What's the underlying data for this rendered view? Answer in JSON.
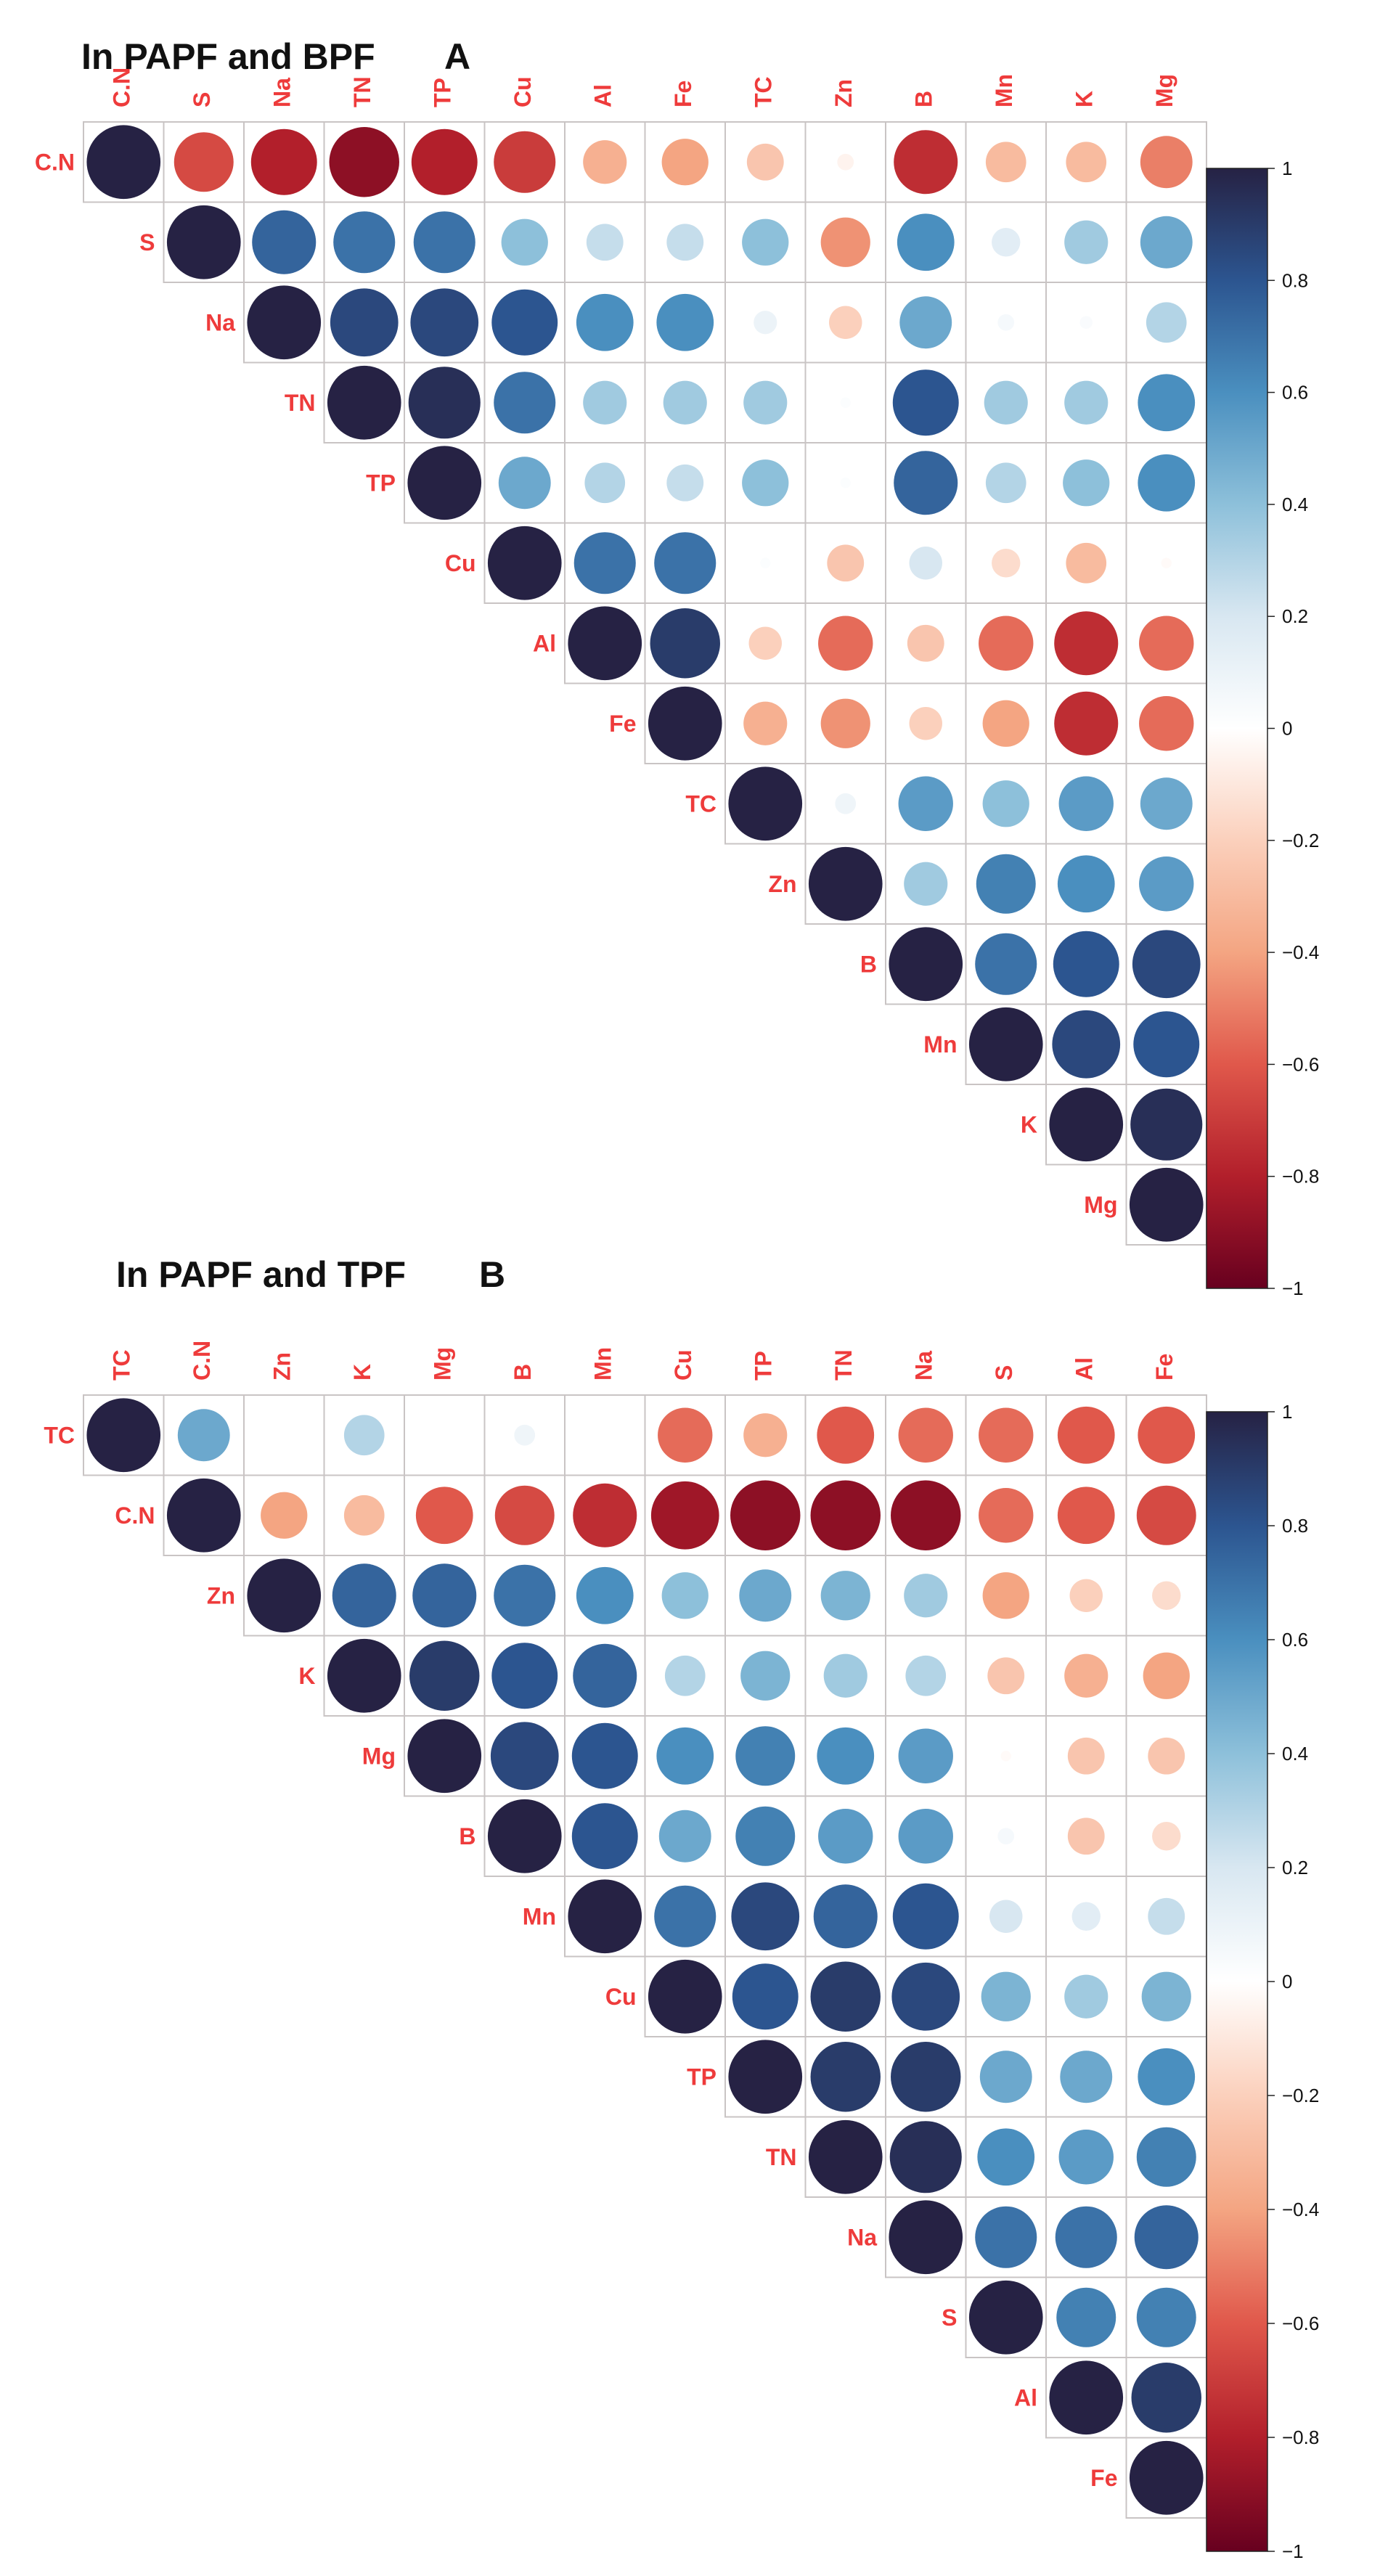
{
  "chart_data": [
    {
      "type": "heatmap",
      "title": "In PAPF and BPF",
      "panel_letter": "A",
      "variables": [
        "C.N",
        "S",
        "Na",
        "TN",
        "TP",
        "Cu",
        "Al",
        "Fe",
        "TC",
        "Zn",
        "B",
        "Mn",
        "K",
        "Mg"
      ],
      "values": [
        [
          1,
          -0.65,
          -0.8,
          -0.9,
          -0.8,
          -0.7,
          -0.35,
          -0.4,
          -0.25,
          -0.05,
          -0.75,
          -0.3,
          -0.3,
          -0.5
        ],
        [
          null,
          1,
          0.75,
          0.7,
          0.7,
          0.4,
          0.25,
          0.25,
          0.4,
          -0.45,
          0.6,
          0.15,
          0.35,
          0.5
        ],
        [
          null,
          null,
          1,
          0.85,
          0.85,
          0.8,
          0.6,
          0.6,
          0.1,
          -0.2,
          0.5,
          0.05,
          0.03,
          0.3
        ],
        [
          null,
          null,
          null,
          1,
          0.95,
          0.7,
          0.35,
          0.35,
          0.35,
          0.02,
          0.8,
          0.35,
          0.35,
          0.6
        ],
        [
          null,
          null,
          null,
          null,
          1,
          0.5,
          0.3,
          0.25,
          0.4,
          0.02,
          0.75,
          0.3,
          0.4,
          0.6
        ],
        [
          null,
          null,
          null,
          null,
          null,
          1,
          0.7,
          0.7,
          0.02,
          -0.25,
          0.2,
          -0.15,
          -0.3,
          -0.02
        ],
        [
          null,
          null,
          null,
          null,
          null,
          null,
          1,
          0.9,
          -0.2,
          -0.55,
          -0.25,
          -0.55,
          -0.75,
          -0.55
        ],
        [
          null,
          null,
          null,
          null,
          null,
          null,
          null,
          1,
          -0.35,
          -0.45,
          -0.2,
          -0.4,
          -0.75,
          -0.55
        ],
        [
          null,
          null,
          null,
          null,
          null,
          null,
          null,
          null,
          1,
          0.08,
          0.55,
          0.4,
          0.55,
          0.5
        ],
        [
          null,
          null,
          null,
          null,
          null,
          null,
          null,
          null,
          null,
          1,
          0.35,
          0.65,
          0.6,
          0.55
        ],
        [
          null,
          null,
          null,
          null,
          null,
          null,
          null,
          null,
          null,
          null,
          1,
          0.7,
          0.8,
          0.85
        ],
        [
          null,
          null,
          null,
          null,
          null,
          null,
          null,
          null,
          null,
          null,
          null,
          1,
          0.85,
          0.8
        ],
        [
          null,
          null,
          null,
          null,
          null,
          null,
          null,
          null,
          null,
          null,
          null,
          null,
          1,
          0.95
        ],
        [
          null,
          null,
          null,
          null,
          null,
          null,
          null,
          null,
          null,
          null,
          null,
          null,
          null,
          1
        ]
      ],
      "colorbar": {
        "min": -1,
        "max": 1,
        "ticks": [
          "1",
          "0.8",
          "0.6",
          "0.4",
          "0.2",
          "0",
          "−0.2",
          "−0.4",
          "−0.6",
          "−0.8",
          "−1"
        ]
      }
    },
    {
      "type": "heatmap",
      "title": "In PAPF and TPF",
      "panel_letter": "B",
      "variables": [
        "TC",
        "C.N",
        "Zn",
        "K",
        "Mg",
        "B",
        "Mn",
        "Cu",
        "TP",
        "TN",
        "Na",
        "S",
        "Al",
        "Fe"
      ],
      "values": [
        [
          1,
          0.5,
          0,
          0.3,
          0,
          0.08,
          0,
          -0.55,
          -0.35,
          -0.6,
          -0.55,
          -0.55,
          -0.6,
          -0.6
        ],
        [
          null,
          1,
          -0.4,
          -0.3,
          -0.6,
          -0.65,
          -0.75,
          -0.85,
          -0.9,
          -0.9,
          -0.9,
          -0.55,
          -0.6,
          -0.65
        ],
        [
          null,
          null,
          1,
          0.75,
          0.75,
          0.7,
          0.6,
          0.4,
          0.5,
          0.45,
          0.35,
          -0.4,
          -0.2,
          -0.15
        ],
        [
          null,
          null,
          null,
          1,
          0.9,
          0.8,
          0.75,
          0.3,
          0.45,
          0.35,
          0.3,
          -0.25,
          -0.35,
          -0.4
        ],
        [
          null,
          null,
          null,
          null,
          1,
          0.85,
          0.8,
          0.6,
          0.65,
          0.6,
          0.55,
          -0.02,
          -0.25,
          -0.25
        ],
        [
          null,
          null,
          null,
          null,
          null,
          1,
          0.8,
          0.5,
          0.65,
          0.55,
          0.55,
          0.05,
          -0.25,
          -0.15
        ],
        [
          null,
          null,
          null,
          null,
          null,
          null,
          1,
          0.7,
          0.85,
          0.75,
          0.8,
          0.2,
          0.15,
          0.25
        ],
        [
          null,
          null,
          null,
          null,
          null,
          null,
          null,
          1,
          0.8,
          0.9,
          0.85,
          0.45,
          0.35,
          0.45
        ],
        [
          null,
          null,
          null,
          null,
          null,
          null,
          null,
          null,
          1,
          0.9,
          0.9,
          0.5,
          0.5,
          0.6
        ],
        [
          null,
          null,
          null,
          null,
          null,
          null,
          null,
          null,
          null,
          1,
          0.95,
          0.6,
          0.55,
          0.65
        ],
        [
          null,
          null,
          null,
          null,
          null,
          null,
          null,
          null,
          null,
          null,
          1,
          0.7,
          0.7,
          0.75
        ],
        [
          null,
          null,
          null,
          null,
          null,
          null,
          null,
          null,
          null,
          null,
          null,
          1,
          0.65,
          0.65
        ],
        [
          null,
          null,
          null,
          null,
          null,
          null,
          null,
          null,
          null,
          null,
          null,
          null,
          1,
          0.9
        ],
        [
          null,
          null,
          null,
          null,
          null,
          null,
          null,
          null,
          null,
          null,
          null,
          null,
          null,
          1
        ]
      ],
      "colorbar": {
        "min": -1,
        "max": 1,
        "ticks": [
          "1",
          "0.8",
          "0.6",
          "0.4",
          "0.2",
          "0",
          "−0.2",
          "−0.4",
          "−0.6",
          "−0.8",
          "−1"
        ]
      }
    }
  ],
  "colors": {
    "label": "#ee3b3b",
    "negative_end": "#67001f",
    "neutral": "#ffffff",
    "positive_end": "#262244"
  }
}
